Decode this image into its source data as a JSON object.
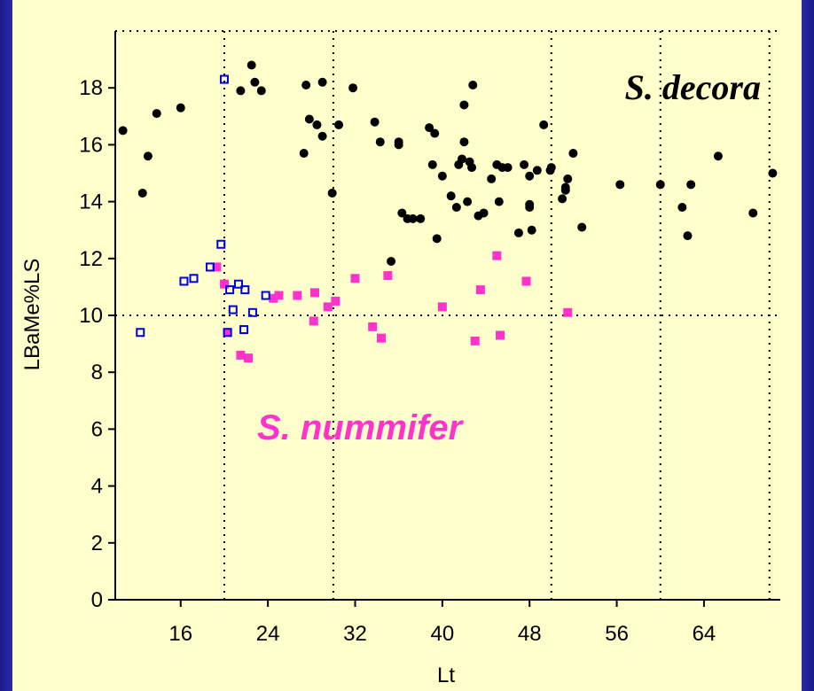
{
  "chart_data": {
    "type": "scatter",
    "title": "",
    "xlabel": "Lt",
    "ylabel": "LBaMe%LS",
    "xlim": [
      10,
      71
    ],
    "ylim": [
      0,
      20
    ],
    "xticks": [
      16,
      24,
      32,
      40,
      48,
      56,
      64
    ],
    "yticks": [
      0,
      2,
      4,
      6,
      8,
      10,
      12,
      14,
      16,
      18
    ],
    "grid": {
      "style": "dotted",
      "vertical_x": [
        20,
        30,
        50,
        60,
        70
      ],
      "horizontal_y": [
        10,
        20
      ]
    },
    "colors": {
      "background": "#ffffcc",
      "frame": "#2a2aa8",
      "decora": "#000000",
      "nummifer": "#ff33cc",
      "blue": "#0000dd"
    },
    "annotations": [
      {
        "id": "decora",
        "text": "S. decora",
        "color": "#000000"
      },
      {
        "id": "nummifer",
        "text": "S. nummifer",
        "color": "#ff33cc"
      }
    ],
    "series": [
      {
        "marker": "filled-circle",
        "color": "#000000",
        "points": [
          [
            10.7,
            16.5
          ],
          [
            12.5,
            14.3
          ],
          [
            13,
            15.6
          ],
          [
            13.8,
            17.1
          ],
          [
            16,
            17.3
          ],
          [
            21.5,
            17.9
          ],
          [
            22.5,
            18.8
          ],
          [
            22.8,
            18.2
          ],
          [
            23.4,
            17.9
          ],
          [
            27.3,
            15.7
          ],
          [
            27.5,
            18.1
          ],
          [
            27.8,
            16.9
          ],
          [
            28.5,
            16.7
          ],
          [
            29,
            18.2
          ],
          [
            29,
            16.3
          ],
          [
            29.9,
            14.3
          ],
          [
            30.5,
            16.7
          ],
          [
            31.8,
            18
          ],
          [
            33.8,
            16.8
          ],
          [
            34.3,
            16.1
          ],
          [
            35.3,
            11.9
          ],
          [
            36,
            16.1
          ],
          [
            36,
            16
          ],
          [
            36.3,
            13.6
          ],
          [
            36.8,
            13.4
          ],
          [
            37.3,
            13.4
          ],
          [
            38,
            13.4
          ],
          [
            38.8,
            16.6
          ],
          [
            39.1,
            15.3
          ],
          [
            39.3,
            16.4
          ],
          [
            39.5,
            12.7
          ],
          [
            40,
            14.9
          ],
          [
            40.8,
            14.2
          ],
          [
            41.3,
            13.8
          ],
          [
            41.5,
            15.3
          ],
          [
            41.8,
            15.5
          ],
          [
            42,
            16.1
          ],
          [
            42,
            17.4
          ],
          [
            42.3,
            14
          ],
          [
            42.5,
            15.4
          ],
          [
            42.7,
            15.2
          ],
          [
            42.8,
            18.1
          ],
          [
            43.3,
            13.5
          ],
          [
            43.8,
            13.6
          ],
          [
            44.5,
            14.8
          ],
          [
            45,
            15.3
          ],
          [
            45.2,
            14
          ],
          [
            45.5,
            15.2
          ],
          [
            46,
            15.2
          ],
          [
            47,
            12.9
          ],
          [
            47.5,
            15.3
          ],
          [
            48,
            14.9
          ],
          [
            48,
            13.9
          ],
          [
            48,
            13.8
          ],
          [
            48.2,
            13
          ],
          [
            48.7,
            15.1
          ],
          [
            49.3,
            16.7
          ],
          [
            49.9,
            15.1
          ],
          [
            50,
            15.2
          ],
          [
            51,
            14.1
          ],
          [
            51.3,
            14.4
          ],
          [
            51.3,
            14.5
          ],
          [
            51.5,
            14.8
          ],
          [
            52,
            15.7
          ],
          [
            52.8,
            13.1
          ],
          [
            56.3,
            14.6
          ],
          [
            60,
            14.6
          ],
          [
            62,
            13.8
          ],
          [
            62.5,
            12.8
          ],
          [
            62.8,
            14.6
          ],
          [
            65.3,
            15.6
          ],
          [
            68.5,
            13.6
          ],
          [
            70.3,
            15
          ]
        ]
      },
      {
        "marker": "filled-square",
        "color": "#ff33cc",
        "points": [
          [
            19.3,
            11.7
          ],
          [
            20,
            11.1
          ],
          [
            20.3,
            9.4
          ],
          [
            21.5,
            8.6
          ],
          [
            22.2,
            8.5
          ],
          [
            24.5,
            10.6
          ],
          [
            25,
            10.7
          ],
          [
            26.7,
            10.7
          ],
          [
            28.2,
            9.8
          ],
          [
            28.3,
            10.8
          ],
          [
            29.5,
            10.3
          ],
          [
            30.2,
            10.5
          ],
          [
            32,
            11.3
          ],
          [
            33.6,
            9.6
          ],
          [
            34.4,
            9.2
          ],
          [
            35,
            11.4
          ],
          [
            40,
            10.3
          ],
          [
            43,
            9.1
          ],
          [
            43.5,
            10.9
          ],
          [
            45,
            12.1
          ],
          [
            45.3,
            9.3
          ],
          [
            47.7,
            11.2
          ],
          [
            51.5,
            10.1
          ]
        ]
      },
      {
        "marker": "open-square",
        "color": "#0000dd",
        "points": [
          [
            12.3,
            9.4
          ],
          [
            16.3,
            11.2
          ],
          [
            17.2,
            11.3
          ],
          [
            18.7,
            11.7
          ],
          [
            19.7,
            12.5
          ],
          [
            20,
            18.3
          ],
          [
            20.3,
            9.4
          ],
          [
            20.5,
            10.9
          ],
          [
            20.8,
            10.2
          ],
          [
            21.3,
            11.1
          ],
          [
            21.8,
            9.5
          ],
          [
            21.9,
            10.9
          ],
          [
            22.6,
            10.1
          ],
          [
            23.8,
            10.7
          ]
        ]
      }
    ]
  }
}
